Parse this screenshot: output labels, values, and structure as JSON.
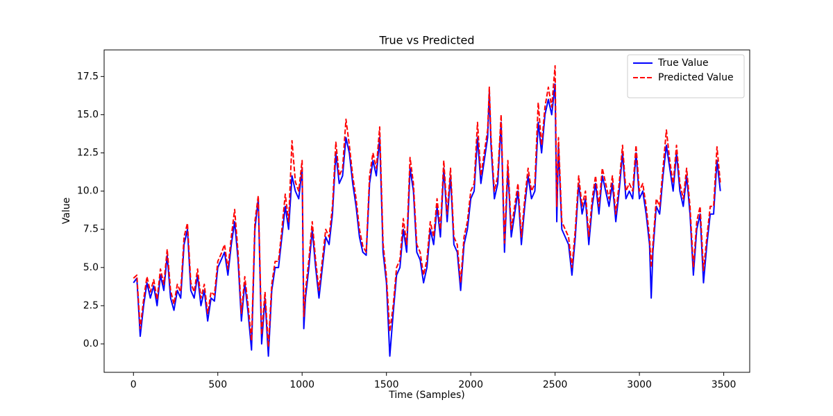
{
  "chart_data": {
    "type": "line",
    "title": "True vs Predicted",
    "x_label": "Time (Samples)",
    "y_label": "Value",
    "x": [
      0,
      20,
      40,
      60,
      80,
      100,
      120,
      140,
      160,
      180,
      200,
      220,
      240,
      260,
      280,
      300,
      320,
      340,
      360,
      380,
      400,
      420,
      440,
      460,
      480,
      500,
      520,
      540,
      560,
      580,
      600,
      620,
      640,
      660,
      680,
      700,
      720,
      740,
      760,
      780,
      800,
      820,
      840,
      860,
      880,
      900,
      920,
      940,
      960,
      980,
      1000,
      1010,
      1020,
      1040,
      1060,
      1080,
      1100,
      1120,
      1140,
      1160,
      1180,
      1200,
      1220,
      1240,
      1260,
      1280,
      1300,
      1320,
      1340,
      1360,
      1380,
      1400,
      1420,
      1440,
      1460,
      1480,
      1500,
      1520,
      1540,
      1560,
      1580,
      1600,
      1620,
      1640,
      1660,
      1680,
      1700,
      1720,
      1740,
      1760,
      1780,
      1800,
      1820,
      1840,
      1860,
      1880,
      1900,
      1920,
      1940,
      1960,
      1980,
      2000,
      2020,
      2040,
      2060,
      2080,
      2100,
      2110,
      2120,
      2140,
      2160,
      2180,
      2200,
      2220,
      2240,
      2260,
      2280,
      2300,
      2320,
      2340,
      2360,
      2380,
      2400,
      2420,
      2440,
      2460,
      2480,
      2500,
      2510,
      2520,
      2540,
      2560,
      2580,
      2600,
      2620,
      2640,
      2660,
      2680,
      2700,
      2720,
      2740,
      2760,
      2780,
      2800,
      2820,
      2840,
      2860,
      2880,
      2900,
      2920,
      2940,
      2960,
      2980,
      3000,
      3020,
      3040,
      3060,
      3070,
      3080,
      3100,
      3120,
      3140,
      3160,
      3180,
      3200,
      3220,
      3240,
      3260,
      3280,
      3300,
      3320,
      3340,
      3360,
      3380,
      3400,
      3420,
      3440,
      3460,
      3480
    ],
    "series": [
      {
        "name": "True Value",
        "color": "#0000ff",
        "dash": false,
        "values": [
          4.0,
          4.3,
          0.5,
          2.5,
          4.0,
          3.0,
          3.8,
          2.5,
          4.5,
          3.5,
          5.8,
          3.0,
          2.2,
          3.5,
          3.0,
          6.5,
          7.5,
          3.5,
          3.0,
          4.5,
          2.5,
          3.5,
          1.5,
          3.0,
          2.8,
          5.0,
          5.5,
          6.0,
          4.5,
          6.5,
          8.0,
          5.5,
          1.5,
          4.0,
          2.0,
          -0.4,
          7.5,
          9.5,
          0.0,
          3.0,
          -0.8,
          3.5,
          5.0,
          5.0,
          7.0,
          9.0,
          7.5,
          11.0,
          10.0,
          9.5,
          11.5,
          1.0,
          3.0,
          5.0,
          7.5,
          5.0,
          3.0,
          5.0,
          7.0,
          6.5,
          8.5,
          12.5,
          10.5,
          11.0,
          13.5,
          12.5,
          10.5,
          9.0,
          7.0,
          6.0,
          5.8,
          10.5,
          12.0,
          11.0,
          13.5,
          6.0,
          4.0,
          -0.8,
          2.0,
          4.5,
          5.0,
          7.5,
          6.0,
          11.5,
          10.0,
          6.0,
          5.5,
          4.0,
          5.0,
          7.5,
          6.5,
          9.0,
          7.0,
          11.5,
          8.0,
          11.0,
          6.5,
          6.0,
          3.5,
          6.5,
          7.5,
          9.5,
          10.0,
          13.5,
          10.5,
          12.0,
          13.5,
          16.5,
          13.0,
          9.5,
          10.5,
          14.5,
          6.0,
          11.5,
          7.0,
          8.5,
          10.0,
          6.5,
          9.0,
          11.0,
          9.5,
          10.0,
          14.5,
          12.5,
          15.0,
          16.0,
          15.0,
          17.0,
          8.0,
          13.0,
          7.5,
          7.0,
          6.5,
          4.5,
          7.0,
          10.5,
          8.5,
          9.5,
          6.5,
          9.0,
          10.5,
          8.5,
          11.0,
          10.0,
          9.0,
          10.5,
          8.0,
          10.0,
          12.5,
          9.5,
          10.0,
          9.5,
          12.5,
          9.5,
          10.0,
          8.5,
          6.5,
          3.0,
          6.0,
          9.0,
          8.5,
          11.0,
          13.0,
          11.5,
          10.0,
          12.5,
          10.0,
          9.0,
          11.0,
          8.5,
          4.5,
          7.5,
          8.5,
          4.0,
          6.5,
          8.5,
          8.5,
          12.0,
          10.0
        ]
      },
      {
        "name": "Predicted Value",
        "color": "#ff0000",
        "dash": true,
        "values": [
          4.3,
          4.5,
          1.0,
          2.9,
          4.4,
          3.4,
          4.2,
          2.9,
          4.9,
          3.9,
          6.2,
          3.5,
          2.6,
          3.9,
          3.4,
          7.0,
          7.9,
          4.0,
          3.4,
          4.9,
          3.0,
          3.9,
          2.0,
          3.4,
          3.2,
          5.4,
          5.9,
          6.5,
          4.9,
          7.0,
          8.8,
          6.0,
          2.0,
          4.4,
          2.5,
          0.2,
          8.0,
          9.7,
          0.6,
          3.4,
          -0.2,
          3.9,
          5.4,
          5.4,
          7.5,
          9.8,
          8.0,
          13.3,
          10.6,
          10.0,
          12.0,
          1.8,
          3.5,
          5.5,
          8.0,
          5.5,
          3.5,
          5.5,
          7.5,
          7.0,
          9.0,
          13.2,
          11.0,
          11.5,
          14.7,
          13.0,
          11.0,
          9.5,
          7.5,
          6.4,
          6.0,
          11.0,
          12.5,
          11.5,
          14.2,
          6.6,
          4.4,
          0.8,
          2.5,
          5.0,
          5.5,
          8.2,
          6.5,
          12.2,
          10.5,
          6.5,
          6.0,
          4.5,
          5.5,
          8.0,
          7.0,
          9.5,
          7.5,
          12.0,
          8.5,
          11.5,
          7.0,
          6.5,
          4.0,
          7.0,
          8.0,
          10.0,
          10.5,
          14.5,
          11.0,
          12.5,
          14.0,
          16.8,
          13.5,
          10.0,
          11.0,
          15.0,
          6.6,
          12.0,
          7.5,
          9.0,
          10.5,
          7.0,
          9.5,
          11.5,
          10.0,
          10.5,
          15.8,
          13.0,
          15.5,
          16.8,
          15.5,
          18.2,
          9.0,
          13.5,
          8.0,
          7.5,
          7.0,
          5.0,
          7.5,
          11.0,
          9.0,
          10.0,
          7.0,
          9.5,
          11.0,
          9.0,
          11.5,
          10.5,
          9.5,
          11.0,
          8.5,
          10.5,
          13.0,
          10.0,
          10.5,
          10.0,
          13.0,
          10.0,
          10.5,
          9.0,
          7.0,
          5.0,
          6.5,
          9.5,
          9.0,
          11.5,
          14.0,
          12.0,
          10.5,
          13.0,
          10.5,
          9.5,
          11.5,
          9.0,
          5.0,
          8.0,
          9.0,
          4.8,
          7.0,
          9.0,
          9.0,
          12.9,
          10.5
        ]
      }
    ],
    "xlim": [
      -174,
      3654
    ],
    "ylim": [
      -1.86,
      19.24
    ],
    "xticks": [
      0,
      500,
      1000,
      1500,
      2000,
      2500,
      3000,
      3500
    ],
    "yticks": [
      {
        "value": 0,
        "label": "0.0"
      },
      2.5,
      {
        "value": 5,
        "label": "5.0"
      },
      7.5,
      {
        "value": 10,
        "label": "10.0"
      },
      12.5,
      {
        "value": 15,
        "label": "15.0"
      },
      17.5
    ],
    "legend": "upper right"
  }
}
